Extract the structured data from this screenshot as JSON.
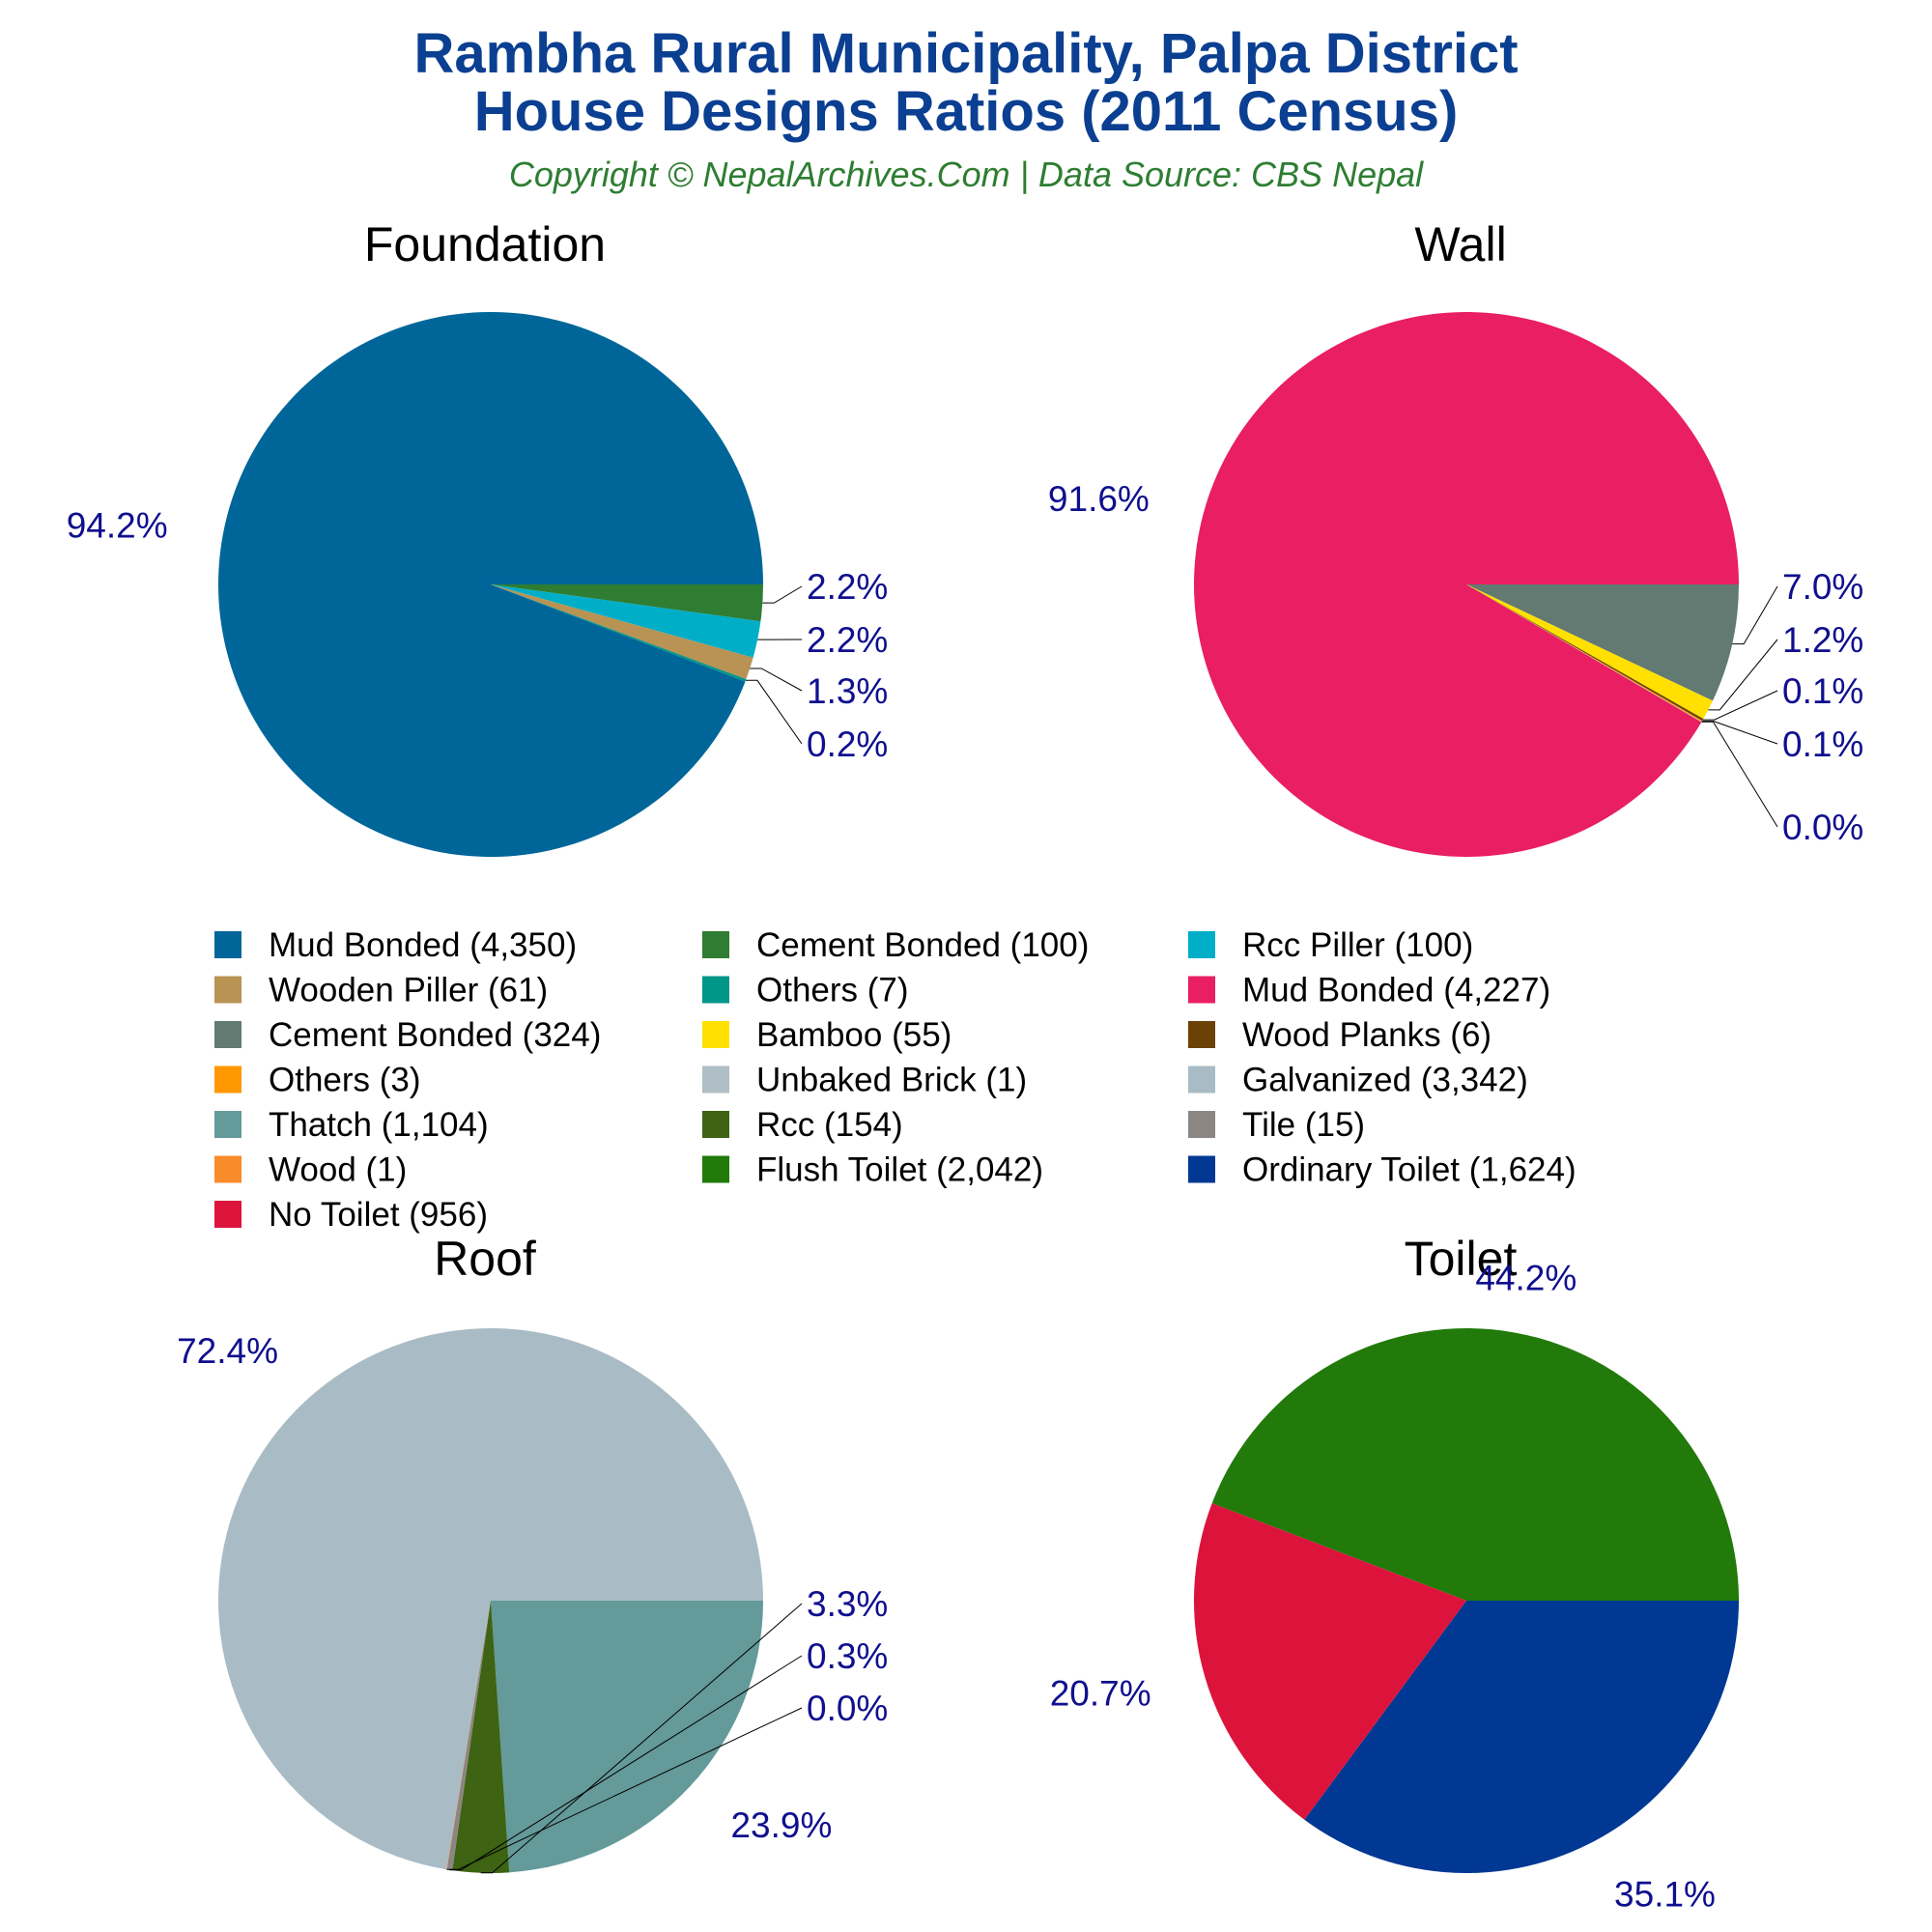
{
  "title_line1": "Rambha Rural Municipality, Palpa District",
  "title_line2": "House Designs Ratios (2011 Census)",
  "subtitle": "Copyright © NepalArchives.Com | Data Source: CBS Nepal",
  "chart_data": [
    {
      "type": "pie",
      "title": "Foundation",
      "slices": [
        {
          "label": "Mud Bonded",
          "count": 4350,
          "percent_label": "94.2%",
          "color": "#006699"
        },
        {
          "label": "Cement Bonded",
          "count": 100,
          "percent_label": "2.2%",
          "color": "#2E7D32"
        },
        {
          "label": "Rcc Piller",
          "count": 100,
          "percent_label": "2.2%",
          "color": "#00AEC7"
        },
        {
          "label": "Wooden Piller",
          "count": 61,
          "percent_label": "1.3%",
          "color": "#B89354"
        },
        {
          "label": "Others",
          "count": 7,
          "percent_label": "0.2%",
          "color": "#009688"
        }
      ]
    },
    {
      "type": "pie",
      "title": "Wall",
      "slices": [
        {
          "label": "Mud Bonded",
          "count": 4227,
          "percent_label": "91.6%",
          "color": "#E91E63"
        },
        {
          "label": "Cement Bonded",
          "count": 324,
          "percent_label": "7.0%",
          "color": "#627A72"
        },
        {
          "label": "Bamboo",
          "count": 55,
          "percent_label": "1.2%",
          "color": "#FFE000"
        },
        {
          "label": "Wood Planks",
          "count": 6,
          "percent_label": "0.1%",
          "color": "#6B4106"
        },
        {
          "label": "Others",
          "count": 3,
          "percent_label": "0.1%",
          "color": "#FF9800"
        },
        {
          "label": "Unbaked Brick",
          "count": 1,
          "percent_label": "0.0%",
          "color": "#B0BEC5"
        }
      ]
    },
    {
      "type": "pie",
      "title": "Roof",
      "slices": [
        {
          "label": "Galvanized",
          "count": 3342,
          "percent_label": "72.4%",
          "color": "#A9BCC5"
        },
        {
          "label": "Thatch",
          "count": 1104,
          "percent_label": "23.9%",
          "color": "#649A99"
        },
        {
          "label": "Rcc",
          "count": 154,
          "percent_label": "3.3%",
          "color": "#3D6313"
        },
        {
          "label": "Tile",
          "count": 15,
          "percent_label": "0.3%",
          "color": "#8B8682"
        },
        {
          "label": "Wood",
          "count": 1,
          "percent_label": "0.0%",
          "color": "#F98B2B"
        }
      ]
    },
    {
      "type": "pie",
      "title": "Toilet",
      "slices": [
        {
          "label": "Flush Toilet",
          "count": 2042,
          "percent_label": "44.2%",
          "color": "#217A0A"
        },
        {
          "label": "Ordinary Toilet",
          "count": 1624,
          "percent_label": "35.1%",
          "color": "#003893"
        },
        {
          "label": "No Toilet",
          "count": 956,
          "percent_label": "20.7%",
          "color": "#DC143C"
        }
      ]
    }
  ],
  "legend": [
    {
      "text": "Mud Bonded (4,350)",
      "color": "#006699"
    },
    {
      "text": "Cement Bonded (100)",
      "color": "#2E7D32"
    },
    {
      "text": "Rcc Piller (100)",
      "color": "#00AEC7"
    },
    {
      "text": "Wooden Piller (61)",
      "color": "#B89354"
    },
    {
      "text": "Others (7)",
      "color": "#009688"
    },
    {
      "text": "Mud Bonded (4,227)",
      "color": "#E91E63"
    },
    {
      "text": "Cement Bonded (324)",
      "color": "#627A72"
    },
    {
      "text": "Bamboo (55)",
      "color": "#FFE000"
    },
    {
      "text": "Wood Planks (6)",
      "color": "#6B4106"
    },
    {
      "text": "Others (3)",
      "color": "#FF9800"
    },
    {
      "text": "Unbaked Brick (1)",
      "color": "#B0BEC5"
    },
    {
      "text": "Galvanized (3,342)",
      "color": "#A9BCC5"
    },
    {
      "text": "Thatch (1,104)",
      "color": "#649A99"
    },
    {
      "text": "Rcc (154)",
      "color": "#3D6313"
    },
    {
      "text": "Tile (15)",
      "color": "#8B8682"
    },
    {
      "text": "Wood (1)",
      "color": "#F98B2B"
    },
    {
      "text": "Flush Toilet (2,042)",
      "color": "#217A0A"
    },
    {
      "text": "Ordinary Toilet (1,624)",
      "color": "#003893"
    },
    {
      "text": "No Toilet (956)",
      "color": "#DC143C"
    }
  ]
}
